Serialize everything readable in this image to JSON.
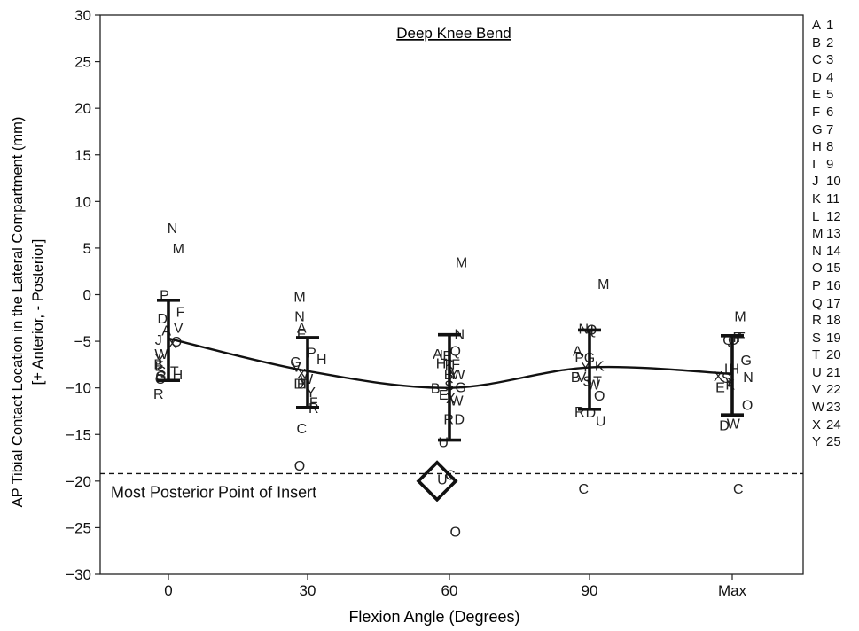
{
  "chart_data": {
    "type": "scatter",
    "title": "Deep Knee Bend",
    "xlabel": "Flexion Angle (Degrees)",
    "ylabel": [
      "AP Tibial Contact Location in the Lateral Compartment (mm)",
      "[+ Anterior, - Posterior]"
    ],
    "categories": [
      "0",
      "30",
      "60",
      "90",
      "Max"
    ],
    "ylim": [
      -30,
      30
    ],
    "yticks": [
      30,
      25,
      20,
      15,
      10,
      5,
      0,
      -5,
      -10,
      -15,
      -20,
      -25,
      -30
    ],
    "grid": false,
    "subjects": [
      {
        "letter": "A",
        "id": "1"
      },
      {
        "letter": "B",
        "id": "2"
      },
      {
        "letter": "C",
        "id": "3"
      },
      {
        "letter": "D",
        "id": "4"
      },
      {
        "letter": "E",
        "id": "5"
      },
      {
        "letter": "F",
        "id": "6"
      },
      {
        "letter": "G",
        "id": "7"
      },
      {
        "letter": "H",
        "id": "8"
      },
      {
        "letter": "I",
        "id": "9"
      },
      {
        "letter": "J",
        "id": "10"
      },
      {
        "letter": "K",
        "id": "11"
      },
      {
        "letter": "L",
        "id": "12"
      },
      {
        "letter": "M",
        "id": "13"
      },
      {
        "letter": "N",
        "id": "14"
      },
      {
        "letter": "O",
        "id": "15"
      },
      {
        "letter": "P",
        "id": "16"
      },
      {
        "letter": "Q",
        "id": "17"
      },
      {
        "letter": "R",
        "id": "18"
      },
      {
        "letter": "S",
        "id": "19"
      },
      {
        "letter": "T",
        "id": "20"
      },
      {
        "letter": "U",
        "id": "21"
      },
      {
        "letter": "V",
        "id": "22"
      },
      {
        "letter": "W",
        "id": "23"
      },
      {
        "letter": "X",
        "id": "24"
      },
      {
        "letter": "Y",
        "id": "25"
      }
    ],
    "points": [
      {
        "cat": 0,
        "dx": 1,
        "label": "N",
        "y": 7.2
      },
      {
        "cat": 0,
        "dx": 2.5,
        "label": "M",
        "y": 5.0
      },
      {
        "cat": 0,
        "dx": -1,
        "label": "P",
        "y": 0.0
      },
      {
        "cat": 0,
        "dx": 3,
        "label": "F",
        "y": -1.8
      },
      {
        "cat": 0,
        "dx": -1.5,
        "label": "D",
        "y": -2.5
      },
      {
        "cat": 0,
        "dx": 2.5,
        "label": "V",
        "y": -3.5
      },
      {
        "cat": 0,
        "dx": -0.5,
        "label": "A",
        "y": -3.8
      },
      {
        "cat": 0,
        "dx": -2.5,
        "label": "J",
        "y": -4.8
      },
      {
        "cat": 0,
        "dx": 1,
        "label": "X",
        "y": -5.2
      },
      {
        "cat": 0,
        "dx": 2,
        "label": "O",
        "y": -5.0
      },
      {
        "cat": 0,
        "dx": -1.8,
        "label": "W",
        "y": -6.3
      },
      {
        "cat": 0,
        "dx": -2.2,
        "label": "Y",
        "y": -6.9
      },
      {
        "cat": 0,
        "dx": -2.5,
        "label": "B",
        "y": -7.4
      },
      {
        "cat": 0,
        "dx": -2.3,
        "label": "E",
        "y": -7.6
      },
      {
        "cat": 0,
        "dx": -1.8,
        "label": "S",
        "y": -8.2
      },
      {
        "cat": 0,
        "dx": -1.9,
        "label": "G",
        "y": -8.7
      },
      {
        "cat": 0,
        "dx": -2.0,
        "label": "O",
        "y": -9.0
      },
      {
        "cat": 0,
        "dx": 1.5,
        "label": "T",
        "y": -8.2
      },
      {
        "cat": 0,
        "dx": 2.3,
        "label": "H",
        "y": -8.5
      },
      {
        "cat": 0,
        "dx": -2.5,
        "label": "R",
        "y": -10.6
      },
      {
        "cat": 1,
        "dx": -2,
        "label": "M",
        "y": -0.2
      },
      {
        "cat": 1,
        "dx": -2,
        "label": "N",
        "y": -2.3
      },
      {
        "cat": 1,
        "dx": -1.5,
        "label": "A",
        "y": -3.5
      },
      {
        "cat": 1,
        "dx": -1.5,
        "label": "E",
        "y": -4.2
      },
      {
        "cat": 1,
        "dx": 1,
        "label": "P",
        "y": -6.2
      },
      {
        "cat": 1,
        "dx": 3.5,
        "label": "H",
        "y": -6.9
      },
      {
        "cat": 1,
        "dx": -3,
        "label": "G",
        "y": -7.2
      },
      {
        "cat": 1,
        "dx": -2.8,
        "label": "V",
        "y": -7.7
      },
      {
        "cat": 1,
        "dx": -1.5,
        "label": "X",
        "y": -8.4
      },
      {
        "cat": 1,
        "dx": -0.3,
        "label": "W",
        "y": -9.0
      },
      {
        "cat": 1,
        "dx": -2.2,
        "label": "D",
        "y": -9.5
      },
      {
        "cat": 1,
        "dx": -1.5,
        "label": "B",
        "y": -9.5
      },
      {
        "cat": 1,
        "dx": -0.7,
        "label": "T",
        "y": -9.5
      },
      {
        "cat": 1,
        "dx": 0.8,
        "label": "Y",
        "y": -10.4
      },
      {
        "cat": 1,
        "dx": 1.5,
        "label": "F",
        "y": -11.5
      },
      {
        "cat": 1,
        "dx": 1.5,
        "label": "R",
        "y": -12.1
      },
      {
        "cat": 1,
        "dx": -1.5,
        "label": "C",
        "y": -14.3
      },
      {
        "cat": 1,
        "dx": -2,
        "label": "O",
        "y": -18.3
      },
      {
        "cat": 2,
        "dx": 3,
        "label": "M",
        "y": 3.5
      },
      {
        "cat": 2,
        "dx": 2.5,
        "label": "N",
        "y": -4.2
      },
      {
        "cat": 2,
        "dx": 1.5,
        "label": "Q",
        "y": -6.0
      },
      {
        "cat": 2,
        "dx": -3,
        "label": "A",
        "y": -6.3
      },
      {
        "cat": 2,
        "dx": -1.5,
        "label": "L",
        "y": -6.4
      },
      {
        "cat": 2,
        "dx": -0.5,
        "label": "E",
        "y": -6.5
      },
      {
        "cat": 2,
        "dx": -2.1,
        "label": "H",
        "y": -7.3
      },
      {
        "cat": 2,
        "dx": 0,
        "label": "K",
        "y": -7.5
      },
      {
        "cat": 2,
        "dx": 1.6,
        "label": "F",
        "y": -7.4
      },
      {
        "cat": 2,
        "dx": -0.2,
        "label": "B",
        "y": -8.5
      },
      {
        "cat": 2,
        "dx": 1,
        "label": "Y",
        "y": -8.5
      },
      {
        "cat": 2,
        "dx": 2.2,
        "label": "W",
        "y": -8.5
      },
      {
        "cat": 2,
        "dx": -0.1,
        "label": "S",
        "y": -9.7
      },
      {
        "cat": 2,
        "dx": 2.8,
        "label": "G",
        "y": -9.9
      },
      {
        "cat": 2,
        "dx": -3.5,
        "label": "B",
        "y": -10.0
      },
      {
        "cat": 2,
        "dx": -1.5,
        "label": "E",
        "y": -10.7
      },
      {
        "cat": 2,
        "dx": 0.3,
        "label": "X",
        "y": -11.1
      },
      {
        "cat": 2,
        "dx": 1.8,
        "label": "W",
        "y": -11.3
      },
      {
        "cat": 2,
        "dx": -0.2,
        "label": "R",
        "y": -13.3
      },
      {
        "cat": 2,
        "dx": 2.5,
        "label": "D",
        "y": -13.3
      },
      {
        "cat": 2,
        "dx": -1.5,
        "label": "U",
        "y": -15.8
      },
      {
        "cat": 2,
        "dx": 0.2,
        "label": "C",
        "y": -19.3
      },
      {
        "cat": 2,
        "dx": 1.5,
        "label": "O",
        "y": -25.4
      },
      {
        "cat": 2,
        "dx": -1.8,
        "label": "U",
        "y": -19.8
      },
      {
        "cat": 3,
        "dx": 3.5,
        "label": "M",
        "y": 1.2
      },
      {
        "cat": 3,
        "dx": -1.5,
        "label": "N",
        "y": -3.6
      },
      {
        "cat": 3,
        "dx": 0.5,
        "label": "Q",
        "y": -3.7
      },
      {
        "cat": 3,
        "dx": 0.6,
        "label": "I",
        "y": -3.7
      },
      {
        "cat": 3,
        "dx": -3,
        "label": "A",
        "y": -6.0
      },
      {
        "cat": 3,
        "dx": -2.5,
        "label": "P",
        "y": -6.7
      },
      {
        "cat": 3,
        "dx": 0,
        "label": "G",
        "y": -6.7
      },
      {
        "cat": 3,
        "dx": -1,
        "label": "Y",
        "y": -7.7
      },
      {
        "cat": 3,
        "dx": 2.5,
        "label": "K",
        "y": -7.6
      },
      {
        "cat": 3,
        "dx": -3.5,
        "label": "B",
        "y": -8.8
      },
      {
        "cat": 3,
        "dx": -2,
        "label": "V",
        "y": -8.8
      },
      {
        "cat": 3,
        "dx": -0.5,
        "label": "S",
        "y": -9.2
      },
      {
        "cat": 3,
        "dx": 1,
        "label": "W",
        "y": -9.6
      },
      {
        "cat": 3,
        "dx": 2,
        "label": "T",
        "y": -9.2
      },
      {
        "cat": 3,
        "dx": 2.5,
        "label": "O",
        "y": -10.8
      },
      {
        "cat": 3,
        "dx": -2.5,
        "label": "R",
        "y": -12.5
      },
      {
        "cat": 3,
        "dx": 0.3,
        "label": "D",
        "y": -12.6
      },
      {
        "cat": 3,
        "dx": 2.8,
        "label": "U",
        "y": -13.5
      },
      {
        "cat": 3,
        "dx": -1.5,
        "label": "C",
        "y": -20.8
      },
      {
        "cat": 4,
        "dx": 2,
        "label": "M",
        "y": -2.3
      },
      {
        "cat": 4,
        "dx": -1,
        "label": "Q",
        "y": -4.8
      },
      {
        "cat": 4,
        "dx": 0.3,
        "label": "O",
        "y": -4.8
      },
      {
        "cat": 4,
        "dx": 1.3,
        "label": "P",
        "y": -4.5
      },
      {
        "cat": 4,
        "dx": 2.2,
        "label": "F",
        "y": -4.5
      },
      {
        "cat": 4,
        "dx": 3.5,
        "label": "G",
        "y": -7.0
      },
      {
        "cat": 4,
        "dx": -1,
        "label": "L",
        "y": -7.9
      },
      {
        "cat": 4,
        "dx": 0.5,
        "label": "H",
        "y": -7.9
      },
      {
        "cat": 4,
        "dx": -3.5,
        "label": "X",
        "y": -8.7
      },
      {
        "cat": 4,
        "dx": -1.5,
        "label": "S",
        "y": -8.9
      },
      {
        "cat": 4,
        "dx": -0.8,
        "label": "Y",
        "y": -9.3
      },
      {
        "cat": 4,
        "dx": 4,
        "label": "N",
        "y": -8.8
      },
      {
        "cat": 4,
        "dx": -3,
        "label": "E",
        "y": -9.9
      },
      {
        "cat": 4,
        "dx": -0.5,
        "label": "K",
        "y": -9.6
      },
      {
        "cat": 4,
        "dx": 3.8,
        "label": "O",
        "y": -11.8
      },
      {
        "cat": 4,
        "dx": 0,
        "label": "I",
        "y": -12.6
      },
      {
        "cat": 4,
        "dx": -2,
        "label": "D",
        "y": -14.0
      },
      {
        "cat": 4,
        "dx": 0.3,
        "label": "W",
        "y": -13.8
      },
      {
        "cat": 4,
        "dx": 1.5,
        "label": "C",
        "y": -20.8
      }
    ],
    "mean_line": [
      {
        "cat": 0,
        "y": -4.7
      },
      {
        "cat": 1,
        "y": -8.2
      },
      {
        "cat": 2,
        "y": -10.0
      },
      {
        "cat": 3,
        "y": -7.8
      },
      {
        "cat": 4,
        "y": -8.5
      }
    ],
    "error_bars": [
      {
        "cat": 0,
        "low": -9.2,
        "high": -0.6
      },
      {
        "cat": 1,
        "low": -12.1,
        "high": -4.6
      },
      {
        "cat": 2,
        "low": -15.6,
        "high": -4.3
      },
      {
        "cat": 3,
        "low": -12.3,
        "high": -3.8
      },
      {
        "cat": 4,
        "low": -12.9,
        "high": -4.4
      }
    ],
    "reference_line": {
      "y": -19.2,
      "label": "Most Posterior Point of Insert"
    },
    "diamond_marker": {
      "cat": 2,
      "y": -20.0
    }
  }
}
